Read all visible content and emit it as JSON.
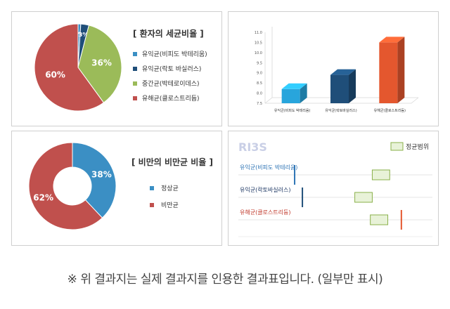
{
  "chart_data": [
    {
      "type": "pie",
      "title": "[ 환자의 세균비율 ]",
      "series": [
        {
          "name": "유익균(비피도 박테리움)",
          "value": 1,
          "label": "1%",
          "color": "#3b8fc4"
        },
        {
          "name": "유익균(락토 바실러스)",
          "value": 3,
          "label": "3%",
          "color": "#1f4e79"
        },
        {
          "name": "중간균(박테로이데스)",
          "value": 36,
          "label": "36%",
          "color": "#9bbb59"
        },
        {
          "name": "유해균(클로스트리듐)",
          "value": 60,
          "label": "60%",
          "color": "#c0504d"
        }
      ]
    },
    {
      "type": "bar",
      "categories": [
        "유익균(비피도 박테리움)",
        "유익균(락토바실러스)",
        "유해균(클로스트리듐)"
      ],
      "values": [
        8.2,
        8.9,
        10.5
      ],
      "colors": [
        "#28a5dc",
        "#1f4e79",
        "#e4572e"
      ],
      "ylim": [
        7.5,
        11.0
      ],
      "yticks": [
        "7.5",
        "8.0",
        "8.5",
        "9.0",
        "9.5",
        "10.0",
        "10.5",
        "11.0"
      ]
    },
    {
      "type": "pie",
      "title": "[ 비만의 비만균 비율 ]",
      "series": [
        {
          "name": "정상균",
          "value": 38,
          "label": "38%",
          "color": "#3b8fc4"
        },
        {
          "name": "비만균",
          "value": 62,
          "label": "62%",
          "color": "#c0504d"
        }
      ]
    },
    {
      "type": "scatter",
      "logo": "RI3S",
      "legend": "정균범위",
      "rows": [
        {
          "label": "유익균(비피도 박테리움)",
          "color": "#2e74b5",
          "value": 0.29,
          "range": [
            0.69,
            0.78
          ],
          "marker": "#2e74b5"
        },
        {
          "label": "유익균(락토바실러스)",
          "color": "#1f3864",
          "value": 0.33,
          "range": [
            0.6,
            0.69
          ],
          "marker": "#1f4e79"
        },
        {
          "label": "유해균(클로스트리듐)",
          "color": "#c0392b",
          "value": 0.84,
          "range": [
            0.68,
            0.77
          ],
          "marker": "#e4572e"
        }
      ]
    }
  ],
  "footnote": "※  위 결과지는 실제 결과지를 인용한 결과표입니다. (일부만 표시)"
}
